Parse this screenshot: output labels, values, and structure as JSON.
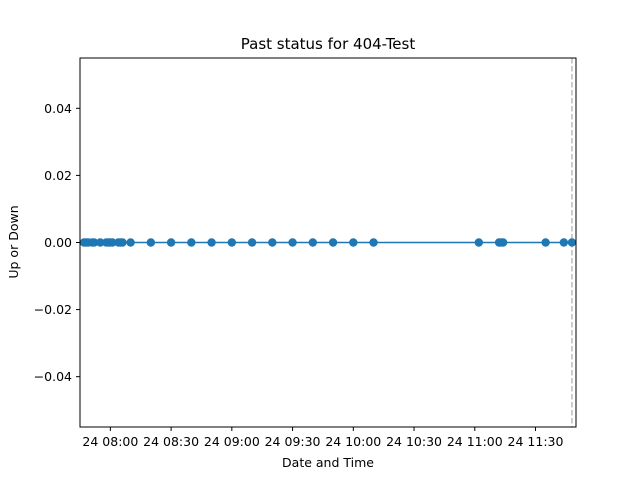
{
  "chart_data": {
    "type": "line",
    "title": "Past status for 404-Test",
    "xlabel": "Date and Time",
    "ylabel": "Up or Down",
    "x_type": "time",
    "xlim": [
      "2024-01-24T07:45:00",
      "2024-01-24T11:50:00"
    ],
    "ylim": [
      -0.055,
      0.055
    ],
    "x_ticks": [
      {
        "t": "2024-01-24T08:00:00",
        "label": "24 08:00"
      },
      {
        "t": "2024-01-24T08:30:00",
        "label": "24 08:30"
      },
      {
        "t": "2024-01-24T09:00:00",
        "label": "24 09:00"
      },
      {
        "t": "2024-01-24T09:30:00",
        "label": "24 09:30"
      },
      {
        "t": "2024-01-24T10:00:00",
        "label": "24 10:00"
      },
      {
        "t": "2024-01-24T10:30:00",
        "label": "24 10:30"
      },
      {
        "t": "2024-01-24T11:00:00",
        "label": "24 11:00"
      },
      {
        "t": "2024-01-24T11:30:00",
        "label": "24 11:30"
      }
    ],
    "y_ticks": [
      {
        "v": 0.04,
        "label": "0.04"
      },
      {
        "v": 0.02,
        "label": "0.02"
      },
      {
        "v": 0.0,
        "label": "0.00"
      },
      {
        "v": -0.02,
        "label": "−0.02"
      },
      {
        "v": -0.04,
        "label": "−0.04"
      }
    ],
    "grid": false,
    "series": [
      {
        "color": "#1f77b4",
        "marker": "circle",
        "points": [
          {
            "t": "2024-01-24T07:47:00",
            "y": 0
          },
          {
            "t": "2024-01-24T07:48:00",
            "y": 0
          },
          {
            "t": "2024-01-24T07:49:00",
            "y": 0
          },
          {
            "t": "2024-01-24T07:51:00",
            "y": 0
          },
          {
            "t": "2024-01-24T07:52:00",
            "y": 0
          },
          {
            "t": "2024-01-24T07:55:00",
            "y": 0
          },
          {
            "t": "2024-01-24T07:58:00",
            "y": 0
          },
          {
            "t": "2024-01-24T07:59:00",
            "y": 0
          },
          {
            "t": "2024-01-24T08:00:00",
            "y": 0
          },
          {
            "t": "2024-01-24T08:01:00",
            "y": 0
          },
          {
            "t": "2024-01-24T08:04:00",
            "y": 0
          },
          {
            "t": "2024-01-24T08:05:00",
            "y": 0
          },
          {
            "t": "2024-01-24T08:06:00",
            "y": 0
          },
          {
            "t": "2024-01-24T08:10:00",
            "y": 0
          },
          {
            "t": "2024-01-24T08:20:00",
            "y": 0
          },
          {
            "t": "2024-01-24T08:30:00",
            "y": 0
          },
          {
            "t": "2024-01-24T08:40:00",
            "y": 0
          },
          {
            "t": "2024-01-24T08:50:00",
            "y": 0
          },
          {
            "t": "2024-01-24T09:00:00",
            "y": 0
          },
          {
            "t": "2024-01-24T09:10:00",
            "y": 0
          },
          {
            "t": "2024-01-24T09:20:00",
            "y": 0
          },
          {
            "t": "2024-01-24T09:30:00",
            "y": 0
          },
          {
            "t": "2024-01-24T09:40:00",
            "y": 0
          },
          {
            "t": "2024-01-24T09:50:00",
            "y": 0
          },
          {
            "t": "2024-01-24T10:00:00",
            "y": 0
          },
          {
            "t": "2024-01-24T10:10:00",
            "y": 0
          },
          {
            "t": "2024-01-24T11:02:00",
            "y": 0
          },
          {
            "t": "2024-01-24T11:12:00",
            "y": 0
          },
          {
            "t": "2024-01-24T11:13:00",
            "y": 0
          },
          {
            "t": "2024-01-24T11:14:00",
            "y": 0
          },
          {
            "t": "2024-01-24T11:35:00",
            "y": 0
          },
          {
            "t": "2024-01-24T11:44:00",
            "y": 0
          },
          {
            "t": "2024-01-24T11:48:00",
            "y": 0
          }
        ]
      }
    ],
    "vline": {
      "t": "2024-01-24T11:48:00",
      "style": "dashed",
      "color": "#bbbbbb"
    }
  }
}
